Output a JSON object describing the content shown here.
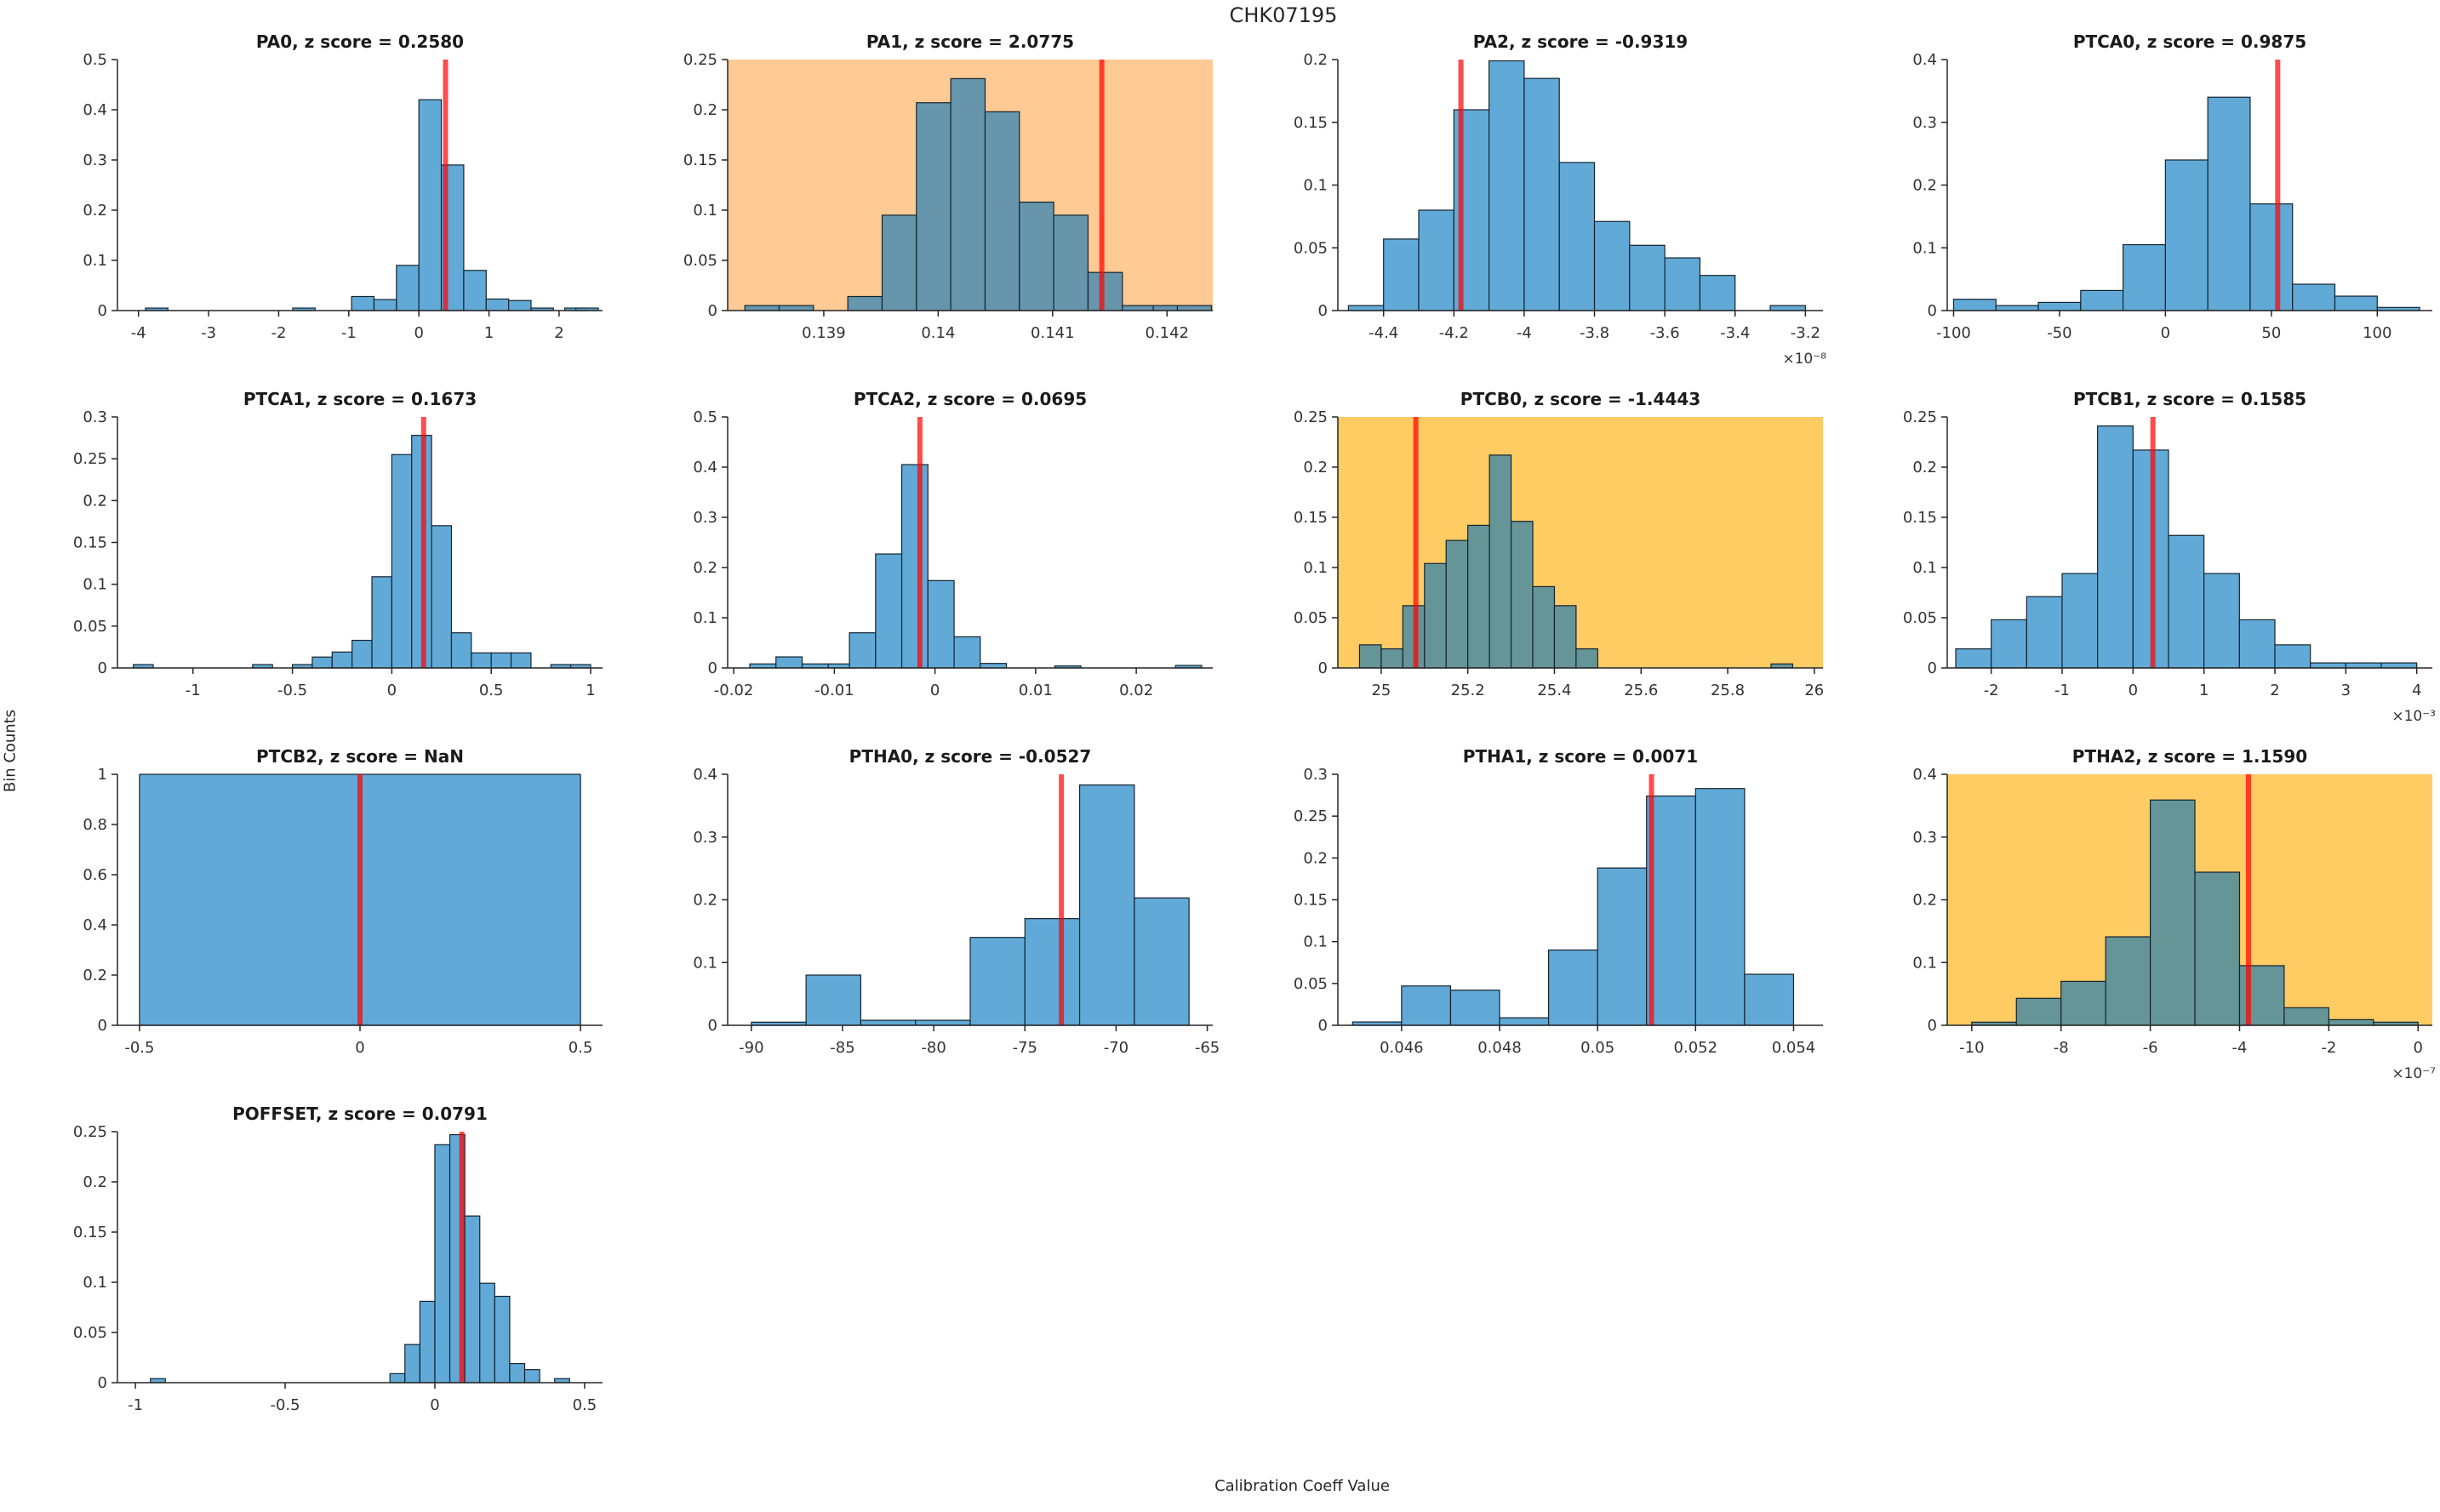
{
  "figure": {
    "title": "CHK07195",
    "ylabel": "Bin Counts",
    "xlabel": "Calibration Coeff Value"
  },
  "colors": {
    "bar_on_white": "#61AAD7",
    "bar_on_peach": "#6695AC",
    "bar_on_amber": "#669598",
    "bar_edge": "#15232e",
    "red_line": "rgba(255,0,0,0.7)",
    "bg_peach": "#FFCA94",
    "bg_amber": "#FFCB63",
    "axis": "#262626",
    "text": "#262626"
  },
  "chart_data": [
    {
      "type": "bar",
      "name": "PA0",
      "title": "PA0, z score = 0.2580",
      "z_score": "0.2580",
      "background": "white",
      "xlim": [
        -4.3,
        2.62
      ],
      "ylim": [
        0,
        0.5
      ],
      "xticks": [
        -4,
        -3,
        -2,
        -1,
        0,
        1,
        2
      ],
      "xtick_labels": [
        "-4",
        "-3",
        "-2",
        "-1",
        "0",
        "1",
        "2"
      ],
      "yticks": [
        0,
        0.1,
        0.2,
        0.3,
        0.4,
        0.5
      ],
      "ytick_labels": [
        "0",
        "0.1",
        "0.2",
        "0.3",
        "0.4",
        "0.5"
      ],
      "bin_width": 0.32,
      "bins": [
        [
          -3.9,
          0.005
        ],
        [
          -1.8,
          0.005
        ],
        [
          -0.96,
          0.028
        ],
        [
          -0.64,
          0.022
        ],
        [
          -0.32,
          0.09
        ],
        [
          0,
          0.42
        ],
        [
          0.32,
          0.29
        ],
        [
          0.64,
          0.08
        ],
        [
          0.96,
          0.023
        ],
        [
          1.28,
          0.02
        ],
        [
          1.6,
          0.005
        ],
        [
          2.08,
          0.005
        ],
        [
          2.24,
          0.005
        ]
      ],
      "red_line": 0.38,
      "x_exponent": null
    },
    {
      "type": "bar",
      "name": "PA1",
      "title": "PA1, z score = 2.0775",
      "z_score": "2.0775",
      "background": "peach",
      "xlim": [
        0.13816,
        0.1424
      ],
      "ylim": [
        0,
        0.25
      ],
      "xticks": [
        0.139,
        0.14,
        0.141,
        0.142
      ],
      "xtick_labels": [
        "0.139",
        "0.14",
        "0.141",
        "0.142"
      ],
      "yticks": [
        0,
        0.05,
        0.1,
        0.15,
        0.2,
        0.25
      ],
      "ytick_labels": [
        "0",
        "0.05",
        "0.1",
        "0.15",
        "0.2",
        "0.25"
      ],
      "bin_width": 0.0003,
      "bins": [
        [
          0.13831,
          0.005
        ],
        [
          0.13861,
          0.005
        ],
        [
          0.13921,
          0.014
        ],
        [
          0.13951,
          0.095
        ],
        [
          0.13981,
          0.207
        ],
        [
          0.14011,
          0.231
        ],
        [
          0.14041,
          0.198
        ],
        [
          0.14071,
          0.108
        ],
        [
          0.14101,
          0.095
        ],
        [
          0.14131,
          0.038
        ],
        [
          0.14161,
          0.005
        ],
        [
          0.14188,
          0.005
        ],
        [
          0.14209,
          0.005
        ]
      ],
      "red_line": 0.14143,
      "x_exponent": null
    },
    {
      "type": "bar",
      "name": "PA2",
      "title": "PA2, z score = -0.9319",
      "z_score": "-0.9319",
      "background": "white",
      "xlim": [
        -4.53,
        -3.15
      ],
      "ylim": [
        0,
        0.2
      ],
      "xticks": [
        -4.4,
        -4.2,
        -4,
        -3.8,
        -3.6,
        -3.4,
        -3.2
      ],
      "xtick_labels": [
        "-4.4",
        "-4.2",
        "-4",
        "-3.8",
        "-3.6",
        "-3.4",
        "-3.2"
      ],
      "yticks": [
        0,
        0.05,
        0.1,
        0.15,
        0.2
      ],
      "ytick_labels": [
        "0",
        "0.05",
        "0.1",
        "0.15",
        "0.2"
      ],
      "bin_width": 0.1,
      "bins": [
        [
          -4.5,
          0.004
        ],
        [
          -4.4,
          0.057
        ],
        [
          -4.3,
          0.08
        ],
        [
          -4.2,
          0.16
        ],
        [
          -4.1,
          0.199
        ],
        [
          -4.0,
          0.185
        ],
        [
          -3.9,
          0.118
        ],
        [
          -3.8,
          0.071
        ],
        [
          -3.7,
          0.052
        ],
        [
          -3.6,
          0.042
        ],
        [
          -3.5,
          0.028
        ],
        [
          -3.3,
          0.004
        ]
      ],
      "red_line": -4.18,
      "x_exponent": "×10⁻⁸"
    },
    {
      "type": "bar",
      "name": "PTCA0",
      "title": "PTCA0, z score = 0.9875",
      "z_score": "0.9875",
      "background": "white",
      "xlim": [
        -103,
        126
      ],
      "ylim": [
        0,
        0.4
      ],
      "xticks": [
        -100,
        -50,
        0,
        50,
        100
      ],
      "xtick_labels": [
        "-100",
        "-50",
        "0",
        "50",
        "100"
      ],
      "yticks": [
        0,
        0.1,
        0.2,
        0.3,
        0.4
      ],
      "ytick_labels": [
        "0",
        "0.1",
        "0.2",
        "0.3",
        "0.4"
      ],
      "bin_width": 20,
      "bins": [
        [
          -100,
          0.018
        ],
        [
          -80,
          0.008
        ],
        [
          -60,
          0.013
        ],
        [
          -40,
          0.032
        ],
        [
          -20,
          0.105
        ],
        [
          0,
          0.24
        ],
        [
          20,
          0.34
        ],
        [
          40,
          0.17
        ],
        [
          60,
          0.042
        ],
        [
          80,
          0.023
        ],
        [
          100,
          0.005
        ]
      ],
      "red_line": 53,
      "x_exponent": null
    },
    {
      "type": "bar",
      "name": "PTCA1",
      "title": "PTCA1, z score = 0.1673",
      "z_score": "0.1673",
      "background": "white",
      "xlim": [
        -1.38,
        1.06
      ],
      "ylim": [
        0,
        0.3
      ],
      "xticks": [
        -1,
        -0.5,
        0,
        0.5,
        1
      ],
      "xtick_labels": [
        "-1",
        "-0.5",
        "0",
        "0.5",
        "1"
      ],
      "yticks": [
        0,
        0.05,
        0.1,
        0.15,
        0.2,
        0.25,
        0.3
      ],
      "ytick_labels": [
        "0",
        "0.05",
        "0.1",
        "0.15",
        "0.2",
        "0.25",
        "0.3"
      ],
      "bin_width": 0.1,
      "bins": [
        [
          -1.3,
          0.004
        ],
        [
          -0.7,
          0.004
        ],
        [
          -0.5,
          0.004
        ],
        [
          -0.4,
          0.013
        ],
        [
          -0.3,
          0.019
        ],
        [
          -0.2,
          0.033
        ],
        [
          -0.1,
          0.109
        ],
        [
          0,
          0.255
        ],
        [
          0.1,
          0.278
        ],
        [
          0.2,
          0.17
        ],
        [
          0.3,
          0.042
        ],
        [
          0.4,
          0.018
        ],
        [
          0.5,
          0.018
        ],
        [
          0.6,
          0.018
        ],
        [
          0.8,
          0.004
        ],
        [
          0.9,
          0.004
        ]
      ],
      "red_line": 0.16,
      "x_exponent": null
    },
    {
      "type": "bar",
      "name": "PTCA2",
      "title": "PTCA2, z score = 0.0695",
      "z_score": "0.0695",
      "background": "white",
      "xlim": [
        -0.0206,
        0.0276
      ],
      "ylim": [
        0,
        0.5
      ],
      "xticks": [
        -0.02,
        -0.01,
        0,
        0.01,
        0.02
      ],
      "xtick_labels": [
        "-0.02",
        "-0.01",
        "0",
        "0.01",
        "0.02"
      ],
      "yticks": [
        0,
        0.1,
        0.2,
        0.3,
        0.4,
        0.5
      ],
      "ytick_labels": [
        "0",
        "0.1",
        "0.2",
        "0.3",
        "0.4",
        "0.5"
      ],
      "bin_width": 0.0026,
      "bins": [
        [
          -0.0184,
          0.008
        ],
        [
          -0.0158,
          0.022
        ],
        [
          -0.0132,
          0.008
        ],
        [
          -0.0106,
          0.008
        ],
        [
          -0.0085,
          0.07
        ],
        [
          -0.0059,
          0.227
        ],
        [
          -0.0033,
          0.405
        ],
        [
          -0.0007,
          0.174
        ],
        [
          0.0019,
          0.062
        ],
        [
          0.0045,
          0.009
        ],
        [
          0.0119,
          0.004
        ],
        [
          0.0239,
          0.005
        ]
      ],
      "red_line": -0.0015,
      "x_exponent": null
    },
    {
      "type": "bar",
      "name": "PTCB0",
      "title": "PTCB0, z score = -1.4443",
      "z_score": "-1.4443",
      "background": "amber",
      "xlim": [
        24.9,
        26.02
      ],
      "ylim": [
        0,
        0.25
      ],
      "xticks": [
        25,
        25.2,
        25.4,
        25.6,
        25.8,
        26
      ],
      "xtick_labels": [
        "25",
        "25.2",
        "25.4",
        "25.6",
        "25.8",
        "26"
      ],
      "yticks": [
        0,
        0.05,
        0.1,
        0.15,
        0.2,
        0.25
      ],
      "ytick_labels": [
        "0",
        "0.05",
        "0.1",
        "0.15",
        "0.2",
        "0.25"
      ],
      "bin_width": 0.05,
      "bins": [
        [
          24.95,
          0.023
        ],
        [
          25.0,
          0.019
        ],
        [
          25.05,
          0.062
        ],
        [
          25.1,
          0.104
        ],
        [
          25.15,
          0.127
        ],
        [
          25.2,
          0.142
        ],
        [
          25.25,
          0.212
        ],
        [
          25.3,
          0.146
        ],
        [
          25.35,
          0.081
        ],
        [
          25.4,
          0.062
        ],
        [
          25.45,
          0.019
        ],
        [
          25.9,
          0.004
        ]
      ],
      "red_line": 25.08,
      "x_exponent": null
    },
    {
      "type": "bar",
      "name": "PTCB1",
      "title": "PTCB1, z score = 0.1585",
      "z_score": "0.1585",
      "background": "white",
      "xlim": [
        -2.62,
        4.22
      ],
      "ylim": [
        0,
        0.25
      ],
      "xticks": [
        -2,
        -1,
        0,
        1,
        2,
        3,
        4
      ],
      "xtick_labels": [
        "-2",
        "-1",
        "0",
        "1",
        "2",
        "3",
        "4"
      ],
      "yticks": [
        0,
        0.05,
        0.1,
        0.15,
        0.2,
        0.25
      ],
      "ytick_labels": [
        "0",
        "0.05",
        "0.1",
        "0.15",
        "0.2",
        "0.25"
      ],
      "bin_width": 0.5,
      "bins": [
        [
          -2.5,
          0.019
        ],
        [
          -2,
          0.048
        ],
        [
          -1.5,
          0.071
        ],
        [
          -1,
          0.094
        ],
        [
          -0.5,
          0.241
        ],
        [
          0,
          0.217
        ],
        [
          0.5,
          0.132
        ],
        [
          1,
          0.094
        ],
        [
          1.5,
          0.048
        ],
        [
          2,
          0.023
        ],
        [
          2.5,
          0.005
        ],
        [
          3,
          0.005
        ],
        [
          3.5,
          0.005
        ]
      ],
      "red_line": 0.28,
      "x_exponent": "×10⁻³"
    },
    {
      "type": "bar",
      "name": "PTCB2",
      "title": "PTCB2, z score = NaN",
      "z_score": "NaN",
      "background": "white",
      "xlim": [
        -0.55,
        0.55
      ],
      "ylim": [
        0,
        1
      ],
      "xticks": [
        -0.5,
        0,
        0.5
      ],
      "xtick_labels": [
        "-0.5",
        "0",
        "0.5"
      ],
      "yticks": [
        0,
        0.2,
        0.4,
        0.6,
        0.8,
        1
      ],
      "ytick_labels": [
        "0",
        "0.2",
        "0.4",
        "0.6",
        "0.8",
        "1"
      ],
      "bin_width": 1,
      "bins": [
        [
          -0.5,
          1
        ]
      ],
      "red_line": 0,
      "x_exponent": null
    },
    {
      "type": "bar",
      "name": "PTHA0",
      "title": "PTHA0, z score = -0.0527",
      "z_score": "-0.0527",
      "background": "white",
      "xlim": [
        -91.3,
        -64.7
      ],
      "ylim": [
        0,
        0.4
      ],
      "xticks": [
        -90,
        -85,
        -80,
        -75,
        -70,
        -65
      ],
      "xtick_labels": [
        "-90",
        "-85",
        "-80",
        "-75",
        "-70",
        "-65"
      ],
      "yticks": [
        0,
        0.1,
        0.2,
        0.3,
        0.4
      ],
      "ytick_labels": [
        "0",
        "0.1",
        "0.2",
        "0.3",
        "0.4"
      ],
      "bin_width": 3,
      "bins": [
        [
          -90,
          0.005
        ],
        [
          -87,
          0.08
        ],
        [
          -84,
          0.008
        ],
        [
          -81,
          0.008
        ],
        [
          -78,
          0.14
        ],
        [
          -75,
          0.17
        ],
        [
          -72,
          0.383
        ],
        [
          -69,
          0.203
        ]
      ],
      "red_line": -73,
      "x_exponent": null
    },
    {
      "type": "bar",
      "name": "PTHA1",
      "title": "PTHA1, z score = 0.0071",
      "z_score": "0.0071",
      "background": "white",
      "xlim": [
        0.0447,
        0.0546
      ],
      "ylim": [
        0,
        0.3
      ],
      "xticks": [
        0.046,
        0.048,
        0.05,
        0.052,
        0.054
      ],
      "xtick_labels": [
        "0.046",
        "0.048",
        "0.05",
        "0.052",
        "0.054"
      ],
      "yticks": [
        0,
        0.05,
        0.1,
        0.15,
        0.2,
        0.25,
        0.3
      ],
      "ytick_labels": [
        "0",
        "0.05",
        "0.1",
        "0.15",
        "0.2",
        "0.25",
        "0.3"
      ],
      "bin_width": 0.001,
      "bins": [
        [
          0.045,
          0.004
        ],
        [
          0.046,
          0.047
        ],
        [
          0.047,
          0.042
        ],
        [
          0.048,
          0.009
        ],
        [
          0.049,
          0.09
        ],
        [
          0.05,
          0.188
        ],
        [
          0.051,
          0.274
        ],
        [
          0.052,
          0.283
        ],
        [
          0.053,
          0.061
        ]
      ],
      "red_line": 0.0511,
      "x_exponent": null
    },
    {
      "type": "bar",
      "name": "PTHA2",
      "title": "PTHA2, z score = 1.1590",
      "z_score": "1.1590",
      "background": "amber",
      "xlim": [
        -10.55,
        0.32
      ],
      "ylim": [
        0,
        0.4
      ],
      "xticks": [
        -10,
        -8,
        -6,
        -4,
        -2,
        0
      ],
      "xtick_labels": [
        "-10",
        "-8",
        "-6",
        "-4",
        "-2",
        "0"
      ],
      "yticks": [
        0,
        0.1,
        0.2,
        0.3,
        0.4
      ],
      "ytick_labels": [
        "0",
        "0.1",
        "0.2",
        "0.3",
        "0.4"
      ],
      "bin_width": 1,
      "bins": [
        [
          -10,
          0.005
        ],
        [
          -9,
          0.043
        ],
        [
          -8,
          0.07
        ],
        [
          -7,
          0.141
        ],
        [
          -6,
          0.359
        ],
        [
          -5,
          0.244
        ],
        [
          -4,
          0.095
        ],
        [
          -3,
          0.028
        ],
        [
          -2,
          0.009
        ],
        [
          -1,
          0.005
        ]
      ],
      "red_line": -3.8,
      "x_exponent": "×10⁻⁷"
    },
    {
      "type": "bar",
      "name": "POFFSET",
      "title": "POFFSET, z score = 0.0791",
      "z_score": "0.0791",
      "background": "white",
      "xlim": [
        -1.06,
        0.56
      ],
      "ylim": [
        0,
        0.25
      ],
      "xticks": [
        -1,
        -0.5,
        0,
        0.5
      ],
      "xtick_labels": [
        "-1",
        "-0.5",
        "0",
        "0.5"
      ],
      "yticks": [
        0,
        0.05,
        0.1,
        0.15,
        0.2,
        0.25
      ],
      "ytick_labels": [
        "0",
        "0.05",
        "0.1",
        "0.15",
        "0.2",
        "0.25"
      ],
      "bin_width": 0.05,
      "bins": [
        [
          -0.95,
          0.004
        ],
        [
          -0.15,
          0.009
        ],
        [
          -0.1,
          0.038
        ],
        [
          -0.05,
          0.081
        ],
        [
          0,
          0.237
        ],
        [
          0.05,
          0.247
        ],
        [
          0.1,
          0.166
        ],
        [
          0.15,
          0.099
        ],
        [
          0.2,
          0.086
        ],
        [
          0.25,
          0.019
        ],
        [
          0.3,
          0.013
        ],
        [
          0.4,
          0.004
        ]
      ],
      "red_line": 0.09,
      "x_exponent": null
    }
  ]
}
